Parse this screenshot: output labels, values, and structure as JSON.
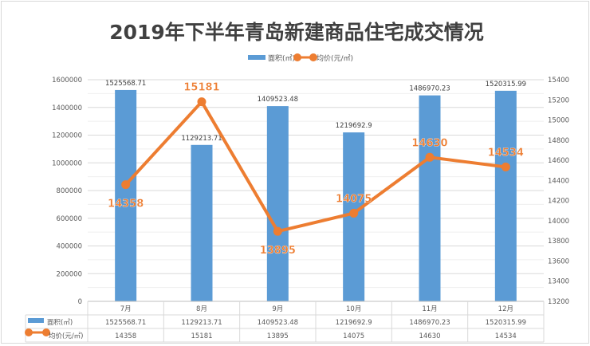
{
  "chart_data": {
    "type": "bar+line",
    "title": "2019年下半年青岛新建商品住宅成交情况",
    "categories": [
      "7月",
      "8月",
      "9月",
      "10月",
      "11月",
      "12月"
    ],
    "series": [
      {
        "name": "面积(㎡)",
        "type": "bar",
        "axis": "left",
        "color": "#5b9bd5",
        "values": [
          1525568.71,
          1129213.71,
          1409523.48,
          1219692.9,
          1486970.23,
          1520315.99
        ],
        "labels": [
          "1525568.71",
          "1129213.71",
          "1409523.48",
          "1219692.9",
          "1486970.23",
          "1520315.99"
        ]
      },
      {
        "name": "均价(元/㎡)",
        "type": "line",
        "axis": "right",
        "color": "#ed7d31",
        "values": [
          14358,
          15181,
          13895,
          14075,
          14630,
          14534
        ],
        "labels": [
          "14358",
          "15181",
          "13895",
          "14075",
          "14630",
          "14534"
        ]
      }
    ],
    "left_axis": {
      "min": 0,
      "max": 1600000,
      "step": 200000,
      "ticks": [
        "0",
        "200000",
        "400000",
        "600000",
        "800000",
        "1000000",
        "1200000",
        "1400000",
        "1600000"
      ]
    },
    "right_axis": {
      "min": 13200,
      "max": 15400,
      "step": 200,
      "ticks": [
        "13200",
        "13400",
        "13600",
        "13800",
        "14000",
        "14200",
        "14400",
        "14600",
        "14800",
        "15000",
        "15200",
        "15400"
      ]
    },
    "legend": "top-center",
    "grid": true,
    "data_table": true
  }
}
